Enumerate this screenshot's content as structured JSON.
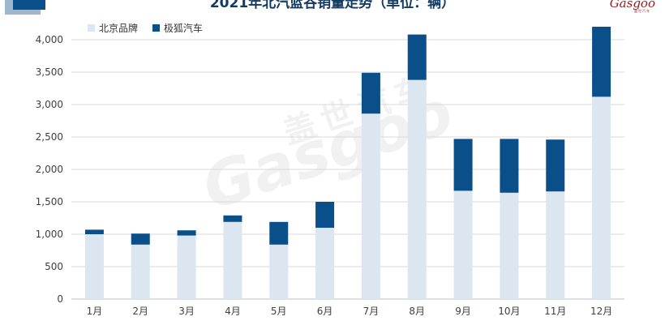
{
  "title": "2021年北汽蓝谷销量走势（单位：辆）",
  "logo": {
    "mark": "Gasgoo",
    "sub": "盖世汽车"
  },
  "watermark": {
    "text": "Gasgoo",
    "cn": "盖世汽车"
  },
  "colors": {
    "beijing": "#dce6f1",
    "arcfox": "#0b4f8a",
    "grid": "#d9d9d9",
    "axis_text": "#404040"
  },
  "chart_data": {
    "type": "bar",
    "stacked": true,
    "title": "2021年北汽蓝谷销量走势（单位：辆）",
    "categories": [
      "1月",
      "2月",
      "3月",
      "4月",
      "5月",
      "6月",
      "7月",
      "8月",
      "9月",
      "10月",
      "11月",
      "12月"
    ],
    "series": [
      {
        "name": "北京品牌",
        "color": "#dce6f1",
        "values": [
          1000,
          840,
          980,
          1190,
          840,
          1100,
          2860,
          3380,
          1670,
          1640,
          1660,
          3120
        ]
      },
      {
        "name": "极狐汽车",
        "color": "#0b4f8a",
        "values": [
          70,
          170,
          80,
          100,
          350,
          400,
          630,
          700,
          800,
          830,
          800,
          1080
        ]
      }
    ],
    "ylim": [
      0,
      4000
    ],
    "yticks": [
      0,
      500,
      1000,
      1500,
      2000,
      2500,
      3000,
      3500,
      4000
    ],
    "ytick_labels": [
      "0",
      "500",
      "1,000",
      "1,500",
      "2,000",
      "2,500",
      "3,000",
      "3,500",
      "4,000"
    ],
    "grid": true,
    "legend": "top-left",
    "xlabel": "",
    "ylabel": ""
  }
}
